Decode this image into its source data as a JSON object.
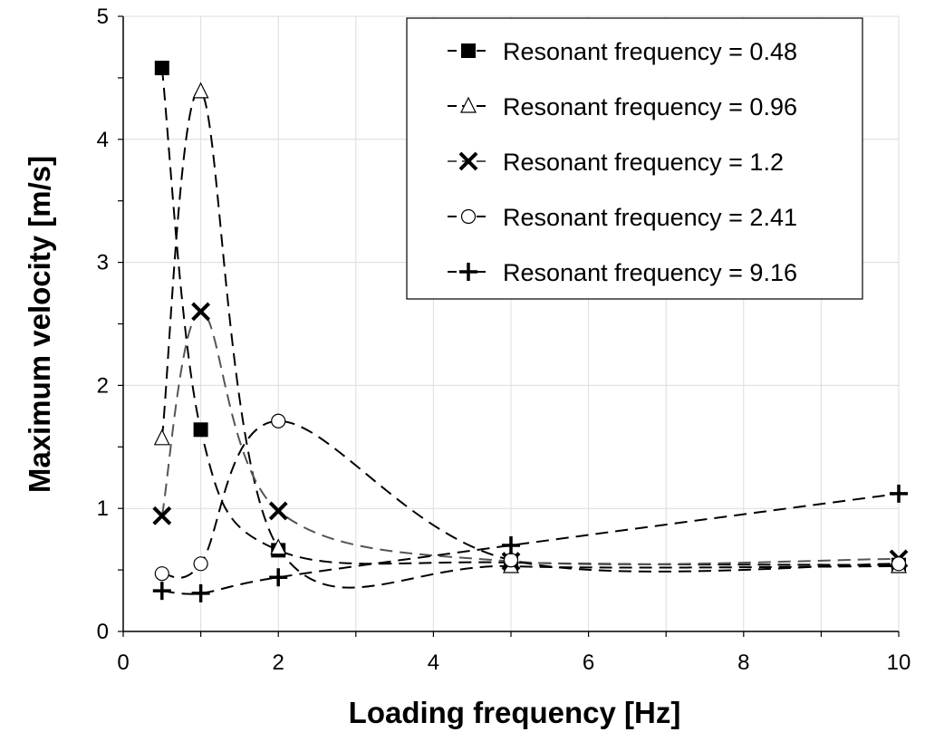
{
  "chart_data": {
    "type": "line",
    "xlabel": "Loading frequency [Hz]",
    "ylabel": "Maximum velocity [m/s]",
    "xlim": [
      0,
      10
    ],
    "ylim": [
      0,
      5
    ],
    "x_ticks": [
      0,
      2,
      4,
      6,
      8,
      10
    ],
    "y_ticks": [
      0,
      1,
      2,
      3,
      4,
      5
    ],
    "grid": true,
    "legend_position": "top-right",
    "x": [
      0.5,
      1,
      2,
      5,
      10
    ],
    "series": [
      {
        "name": "Resonant frequency = 0.48",
        "marker": "square-filled",
        "values": [
          4.58,
          1.64,
          0.66,
          0.56,
          0.54
        ],
        "line_color": "#000000"
      },
      {
        "name": "Resonant frequency = 0.96",
        "marker": "triangle-open",
        "values": [
          1.57,
          4.39,
          0.68,
          0.53,
          0.53
        ],
        "line_color": "#000000"
      },
      {
        "name": "Resonant frequency = 1.2",
        "marker": "x-cross",
        "values": [
          0.94,
          2.6,
          0.98,
          0.57,
          0.59
        ],
        "line_color": "#555555"
      },
      {
        "name": "Resonant frequency = 2.41",
        "marker": "circle-open",
        "values": [
          0.47,
          0.55,
          1.71,
          0.58,
          0.55
        ],
        "line_color": "#000000"
      },
      {
        "name": "Resonant frequency = 9.16",
        "marker": "plus",
        "values": [
          0.33,
          0.31,
          0.44,
          0.7,
          1.12
        ],
        "line_color": "#000000"
      }
    ]
  }
}
